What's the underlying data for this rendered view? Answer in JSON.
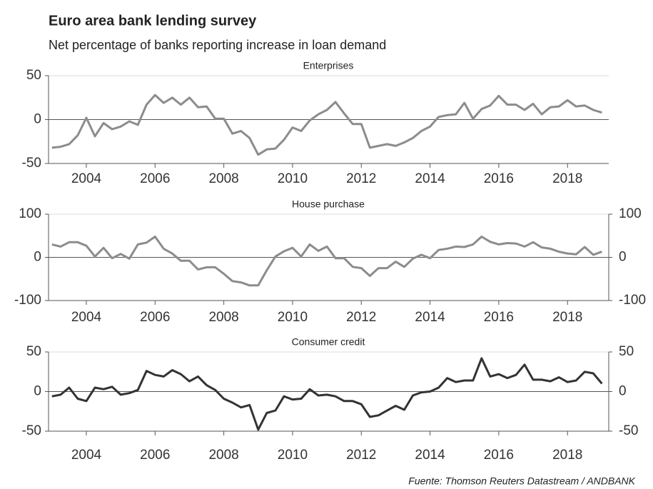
{
  "title": "Euro area bank lending survey",
  "subtitle": "Net percentage of banks reporting increase in loan demand",
  "source": "Fuente: Thomson Reuters Datastream / ANDBANK",
  "chart_data": [
    {
      "type": "line",
      "title": "Enterprises",
      "color": "#8c8c8c",
      "grid": true,
      "right_axis": false,
      "x": [
        2003,
        2003.25,
        2003.5,
        2003.75,
        2004,
        2004.25,
        2004.5,
        2004.75,
        2005,
        2005.25,
        2005.5,
        2005.75,
        2006,
        2006.25,
        2006.5,
        2006.75,
        2007,
        2007.25,
        2007.5,
        2007.75,
        2008,
        2008.25,
        2008.5,
        2008.75,
        2009,
        2009.25,
        2009.5,
        2009.75,
        2010,
        2010.25,
        2010.5,
        2010.75,
        2011,
        2011.25,
        2011.5,
        2011.75,
        2012,
        2012.25,
        2012.5,
        2012.75,
        2013,
        2013.25,
        2013.5,
        2013.75,
        2014,
        2014.25,
        2014.5,
        2014.75,
        2015,
        2015.25,
        2015.5,
        2015.75,
        2016,
        2016.25,
        2016.5,
        2016.75,
        2017,
        2017.25,
        2017.5,
        2017.75,
        2018,
        2018.25,
        2018.5,
        2018.75,
        2019
      ],
      "values": [
        -32,
        -31,
        -28,
        -18,
        2,
        -19,
        -4,
        -11,
        -8,
        -2,
        -6,
        17,
        28,
        19,
        25,
        17,
        25,
        14,
        15,
        1,
        1,
        -16,
        -13,
        -21,
        -40,
        -34,
        -33,
        -23,
        -9,
        -13,
        -1,
        6,
        11,
        20,
        7,
        -5,
        -5,
        -32,
        -30,
        -28,
        -30,
        -26,
        -21,
        -13,
        -8,
        3,
        5,
        6,
        19,
        1,
        12,
        16,
        27,
        17,
        17,
        11,
        18,
        6,
        14,
        15,
        22,
        15,
        16,
        11,
        8
      ],
      "xlim": [
        2002.9,
        2019.2
      ],
      "xticks": [
        2004,
        2006,
        2008,
        2010,
        2012,
        2014,
        2016,
        2018
      ],
      "ylim": [
        -50,
        50
      ],
      "yticks": [
        -50,
        0,
        50
      ]
    },
    {
      "type": "line",
      "title": "House purchase",
      "color": "#8c8c8c",
      "grid": true,
      "right_axis": true,
      "x": [
        2003,
        2003.25,
        2003.5,
        2003.75,
        2004,
        2004.25,
        2004.5,
        2004.75,
        2005,
        2005.25,
        2005.5,
        2005.75,
        2006,
        2006.25,
        2006.5,
        2006.75,
        2007,
        2007.25,
        2007.5,
        2007.75,
        2008,
        2008.25,
        2008.5,
        2008.75,
        2009,
        2009.25,
        2009.5,
        2009.75,
        2010,
        2010.25,
        2010.5,
        2010.75,
        2011,
        2011.25,
        2011.5,
        2011.75,
        2012,
        2012.25,
        2012.5,
        2012.75,
        2013,
        2013.25,
        2013.5,
        2013.75,
        2014,
        2014.25,
        2014.5,
        2014.75,
        2015,
        2015.25,
        2015.5,
        2015.75,
        2016,
        2016.25,
        2016.5,
        2016.75,
        2017,
        2017.25,
        2017.5,
        2017.75,
        2018,
        2018.25,
        2018.5,
        2018.75,
        2019
      ],
      "values": [
        30,
        25,
        35,
        35,
        27,
        2,
        22,
        -2,
        8,
        -3,
        30,
        34,
        48,
        20,
        9,
        -8,
        -8,
        -28,
        -23,
        -23,
        -38,
        -55,
        -58,
        -65,
        -65,
        -30,
        2,
        14,
        22,
        2,
        30,
        15,
        25,
        -2,
        -2,
        -22,
        -25,
        -43,
        -25,
        -25,
        -10,
        -22,
        -3,
        6,
        -2,
        17,
        20,
        25,
        24,
        30,
        48,
        36,
        30,
        33,
        32,
        25,
        35,
        23,
        20,
        13,
        9,
        7,
        24,
        6,
        13
      ],
      "xlim": [
        2002.9,
        2019.2
      ],
      "xticks": [
        2004,
        2006,
        2008,
        2010,
        2012,
        2014,
        2016,
        2018
      ],
      "ylim": [
        -100,
        100
      ],
      "yticks": [
        -100,
        0,
        100
      ]
    },
    {
      "type": "line",
      "title": "Consumer credit",
      "color": "#333333",
      "grid": true,
      "right_axis": true,
      "x": [
        2003,
        2003.25,
        2003.5,
        2003.75,
        2004,
        2004.25,
        2004.5,
        2004.75,
        2005,
        2005.25,
        2005.5,
        2005.75,
        2006,
        2006.25,
        2006.5,
        2006.75,
        2007,
        2007.25,
        2007.5,
        2007.75,
        2008,
        2008.25,
        2008.5,
        2008.75,
        2009,
        2009.25,
        2009.5,
        2009.75,
        2010,
        2010.25,
        2010.5,
        2010.75,
        2011,
        2011.25,
        2011.5,
        2011.75,
        2012,
        2012.25,
        2012.5,
        2012.75,
        2013,
        2013.25,
        2013.5,
        2013.75,
        2014,
        2014.25,
        2014.5,
        2014.75,
        2015,
        2015.25,
        2015.5,
        2015.75,
        2016,
        2016.25,
        2016.5,
        2016.75,
        2017,
        2017.25,
        2017.5,
        2017.75,
        2018,
        2018.25,
        2018.5,
        2018.75,
        2019
      ],
      "values": [
        -6,
        -4,
        5,
        -9,
        -12,
        5,
        3,
        6,
        -4,
        -2,
        2,
        26,
        21,
        19,
        27,
        22,
        13,
        19,
        8,
        2,
        -9,
        -14,
        -20,
        -17,
        -48,
        -27,
        -24,
        -6,
        -10,
        -9,
        3,
        -5,
        -4,
        -6,
        -12,
        -12,
        -16,
        -32,
        -30,
        -24,
        -18,
        -23,
        -5,
        -1,
        0,
        5,
        17,
        12,
        14,
        14,
        42,
        19,
        22,
        17,
        21,
        34,
        15,
        15,
        13,
        18,
        12,
        14,
        25,
        23,
        10
      ],
      "xlim": [
        2002.9,
        2019.2
      ],
      "xticks": [
        2004,
        2006,
        2008,
        2010,
        2012,
        2014,
        2016,
        2018
      ],
      "ylim": [
        -50,
        50
      ],
      "yticks": [
        -50,
        0,
        50
      ]
    }
  ]
}
